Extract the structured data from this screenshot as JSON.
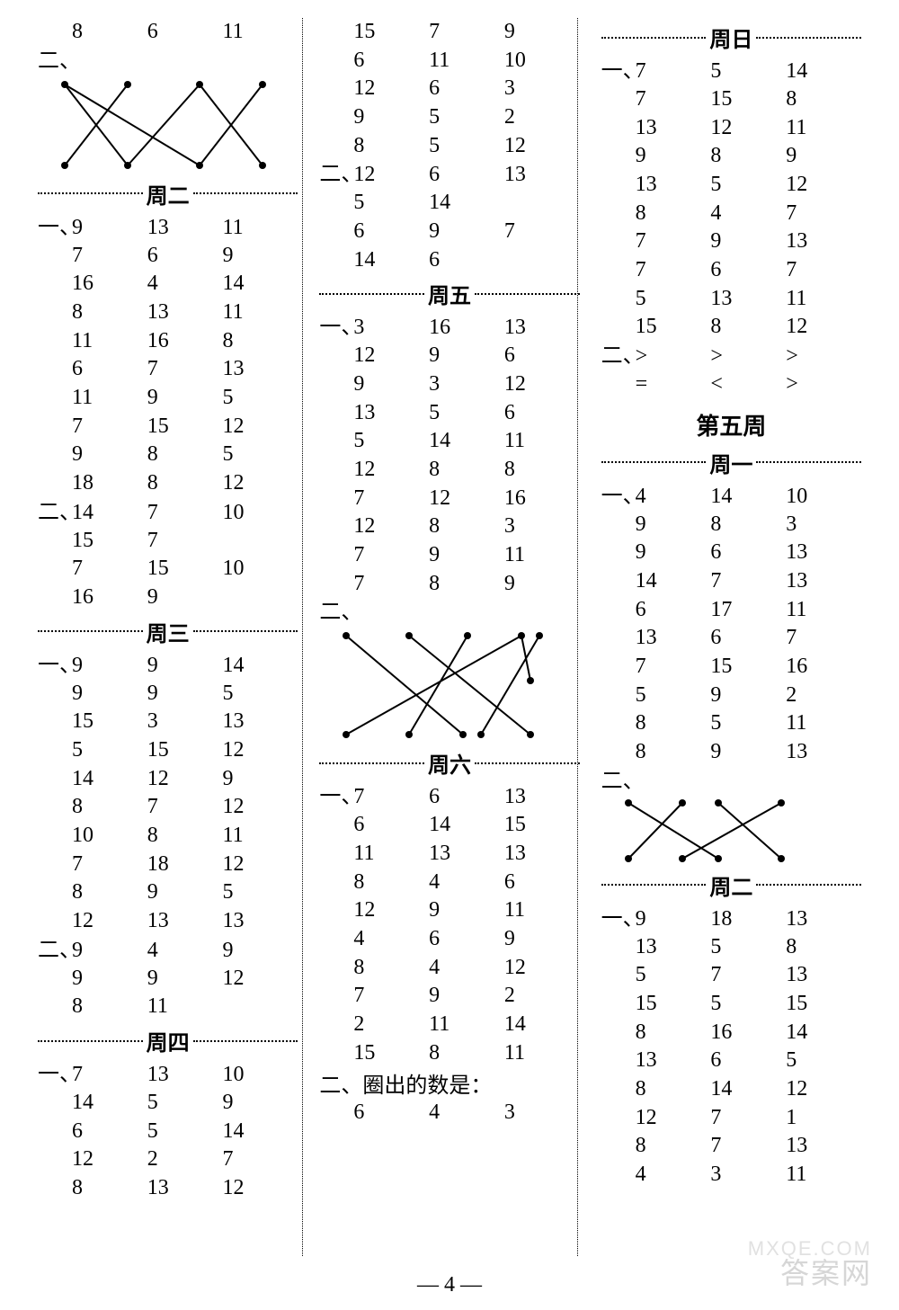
{
  "page_number": "— 4 —",
  "watermark_main": "答案网",
  "watermark_sub": "MXQE.COM",
  "colors": {
    "text": "#000000",
    "bg": "#ffffff",
    "dot": "#000000"
  },
  "col1": {
    "toprow_er_label": "二、",
    "toprow_vals": [
      "8",
      "6",
      "11"
    ],
    "cross1_lines": [
      [
        30,
        10,
        180,
        100
      ],
      [
        30,
        10,
        100,
        100
      ],
      [
        100,
        10,
        30,
        100
      ],
      [
        180,
        10,
        100,
        100
      ],
      [
        180,
        10,
        250,
        100
      ],
      [
        250,
        10,
        180,
        100
      ]
    ],
    "day_zh2": "周二",
    "zh2_yi": "一、",
    "zh2_yi_rows": [
      [
        "9",
        "13",
        "11"
      ],
      [
        "7",
        "6",
        "9"
      ],
      [
        "16",
        "4",
        "14"
      ],
      [
        "8",
        "13",
        "11"
      ],
      [
        "11",
        "16",
        "8"
      ],
      [
        "6",
        "7",
        "13"
      ],
      [
        "11",
        "9",
        "5"
      ],
      [
        "7",
        "15",
        "12"
      ],
      [
        "9",
        "8",
        "5"
      ],
      [
        "18",
        "8",
        "12"
      ]
    ],
    "zh2_er": "二、",
    "zh2_er_rows": [
      [
        "14",
        "7",
        "10"
      ],
      [
        "15",
        "7",
        ""
      ],
      [
        "7",
        "15",
        "10"
      ],
      [
        "16",
        "9",
        ""
      ]
    ],
    "day_zh3": "周三",
    "zh3_yi": "一、",
    "zh3_yi_rows": [
      [
        "9",
        "9",
        "14"
      ],
      [
        "9",
        "9",
        "5"
      ],
      [
        "15",
        "3",
        "13"
      ],
      [
        "5",
        "15",
        "12"
      ],
      [
        "14",
        "12",
        "9"
      ],
      [
        "8",
        "7",
        "12"
      ],
      [
        "10",
        "8",
        "11"
      ],
      [
        "7",
        "18",
        "12"
      ],
      [
        "8",
        "9",
        "5"
      ],
      [
        "12",
        "13",
        "13"
      ]
    ],
    "zh3_er": "二、",
    "zh3_er_rows": [
      [
        "9",
        "4",
        "9"
      ],
      [
        "9",
        "9",
        "12"
      ],
      [
        "8",
        "11",
        ""
      ]
    ],
    "day_zh4": "周四",
    "zh4_yi": "一、",
    "zh4_yi_rows": [
      [
        "7",
        "13",
        "10"
      ],
      [
        "14",
        "5",
        "9"
      ],
      [
        "6",
        "5",
        "14"
      ],
      [
        "12",
        "2",
        "7"
      ],
      [
        "8",
        "13",
        "12"
      ]
    ]
  },
  "col2": {
    "top_rows": [
      [
        "15",
        "7",
        "9"
      ],
      [
        "6",
        "11",
        "10"
      ],
      [
        "12",
        "6",
        "3"
      ],
      [
        "9",
        "5",
        "2"
      ],
      [
        "8",
        "5",
        "12"
      ]
    ],
    "top_er": "二、",
    "top_er_rows": [
      [
        "12",
        "6",
        "13"
      ],
      [
        "5",
        "14",
        ""
      ],
      [
        "6",
        "9",
        "7"
      ],
      [
        "14",
        "6",
        ""
      ]
    ],
    "day_zh5": "周五",
    "zh5_yi": "一、",
    "zh5_yi_rows": [
      [
        "3",
        "16",
        "13"
      ],
      [
        "12",
        "9",
        "6"
      ],
      [
        "9",
        "3",
        "12"
      ],
      [
        "13",
        "5",
        "6"
      ],
      [
        "5",
        "14",
        "11"
      ],
      [
        "12",
        "8",
        "8"
      ],
      [
        "7",
        "12",
        "16"
      ],
      [
        "12",
        "8",
        "3"
      ],
      [
        "7",
        "9",
        "11"
      ],
      [
        "7",
        "8",
        "9"
      ]
    ],
    "zh5_er": "二、",
    "cross2_lines": [
      [
        30,
        10,
        160,
        120
      ],
      [
        100,
        10,
        235,
        120
      ],
      [
        165,
        10,
        100,
        120
      ],
      [
        225,
        10,
        30,
        120
      ],
      [
        225,
        10,
        235,
        60
      ],
      [
        245,
        10,
        180,
        120
      ]
    ],
    "day_zh6": "周六",
    "zh6_yi": "一、",
    "zh6_yi_rows": [
      [
        "7",
        "6",
        "13"
      ],
      [
        "6",
        "14",
        "15"
      ],
      [
        "11",
        "13",
        "13"
      ],
      [
        "8",
        "4",
        "6"
      ],
      [
        "12",
        "9",
        "11"
      ],
      [
        "4",
        "6",
        "9"
      ],
      [
        "8",
        "4",
        "12"
      ],
      [
        "7",
        "9",
        "2"
      ],
      [
        "2",
        "11",
        "14"
      ],
      [
        "15",
        "8",
        "11"
      ]
    ],
    "zh6_er_label": "二、圈出的数是：",
    "zh6_er_row": [
      "6",
      "4",
      "3"
    ]
  },
  "col3": {
    "day_zh7": "周日",
    "zh7_yi": "一、",
    "zh7_yi_rows": [
      [
        "7",
        "5",
        "14"
      ],
      [
        "7",
        "15",
        "8"
      ],
      [
        "13",
        "12",
        "11"
      ],
      [
        "9",
        "8",
        "9"
      ],
      [
        "13",
        "5",
        "12"
      ],
      [
        "8",
        "4",
        "7"
      ],
      [
        "7",
        "9",
        "13"
      ],
      [
        "7",
        "6",
        "7"
      ],
      [
        "5",
        "13",
        "11"
      ],
      [
        "15",
        "8",
        "12"
      ]
    ],
    "zh7_er": "二、",
    "zh7_er_rows": [
      [
        ">",
        ">",
        ">"
      ],
      [
        "=",
        "<",
        ">"
      ]
    ],
    "week5_title": "第五周",
    "day_w5_1": "周一",
    "w5_1_yi": "一、",
    "w5_1_yi_rows": [
      [
        "4",
        "14",
        "10"
      ],
      [
        "9",
        "8",
        "3"
      ],
      [
        "9",
        "6",
        "13"
      ],
      [
        "14",
        "7",
        "13"
      ],
      [
        "6",
        "17",
        "11"
      ],
      [
        "13",
        "6",
        "7"
      ],
      [
        "7",
        "15",
        "16"
      ],
      [
        "5",
        "9",
        "2"
      ],
      [
        "8",
        "5",
        "11"
      ],
      [
        "8",
        "9",
        "13"
      ]
    ],
    "w5_1_er": "二、",
    "cross3_lines": [
      [
        30,
        8,
        130,
        70
      ],
      [
        90,
        8,
        30,
        70
      ],
      [
        130,
        8,
        200,
        70
      ],
      [
        200,
        8,
        90,
        70
      ]
    ],
    "day_w5_2": "周二",
    "w5_2_yi": "一、",
    "w5_2_yi_rows": [
      [
        "9",
        "18",
        "13"
      ],
      [
        "13",
        "5",
        "8"
      ],
      [
        "5",
        "7",
        "13"
      ],
      [
        "15",
        "5",
        "15"
      ],
      [
        "8",
        "16",
        "14"
      ],
      [
        "13",
        "6",
        "5"
      ],
      [
        "8",
        "14",
        "12"
      ],
      [
        "12",
        "7",
        "1"
      ],
      [
        "8",
        "7",
        "13"
      ],
      [
        "4",
        "3",
        "11"
      ]
    ]
  }
}
